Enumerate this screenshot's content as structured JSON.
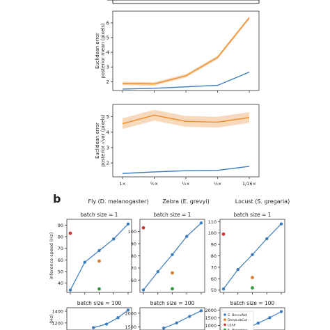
{
  "panel_label_b": "b",
  "column_titles": [
    "Fly (D. melanogaster)",
    "Zebra (E. grevyi)",
    "Locust (S. gregaria)"
  ],
  "colors": {
    "densenet": "#3b7bbf",
    "orange": "#f08a24",
    "deeplabcut": "#e07b28",
    "leap": "#c93a35",
    "green": "#2e9a3b",
    "band": "#f6d2b0"
  },
  "legend_entries": [
    "S. DenseNet",
    "DeepLabCut",
    "LEAP",
    "S. Hourglass"
  ],
  "chart_data": [
    {
      "type": "line",
      "ylabel": "Euclidean error posterior mean (pixels)",
      "yticks": [
        2,
        3,
        4,
        5,
        6
      ],
      "ylim": [
        1.4,
        6.8
      ],
      "x": [
        1,
        2,
        3,
        4,
        5
      ],
      "xtick_labels": [
        "1×",
        "½×",
        "¼×",
        "⅛×",
        "1/16×"
      ],
      "series": [
        {
          "values": [
            1.5,
            1.55,
            1.65,
            1.75,
            2.65
          ],
          "color": "#3b7bbf"
        },
        {
          "values": [
            1.88,
            1.85,
            2.4,
            3.65,
            6.35
          ],
          "band": 0.12,
          "color": "#f08a24"
        }
      ]
    },
    {
      "type": "line",
      "ylabel": "Euclidean error posterior √var (pixels)",
      "yticks": [
        2,
        3,
        4,
        5
      ],
      "ylim": [
        1.1,
        5.8
      ],
      "x": [
        1,
        2,
        3,
        4,
        5
      ],
      "xtick_labels": [
        "1×",
        "½×",
        "¼×",
        "⅛×",
        "1/16×"
      ],
      "series": [
        {
          "values": [
            1.32,
            1.42,
            1.5,
            1.52,
            1.78
          ],
          "color": "#3b7bbf"
        },
        {
          "values": [
            4.55,
            5.1,
            4.7,
            4.65,
            4.95
          ],
          "band": 0.35,
          "color": "#f08a24"
        }
      ]
    },
    {
      "type": "line",
      "title": "batch size = 1",
      "ylabel": "inference speed (Hz)",
      "yticks": [
        40,
        50,
        60,
        70,
        80,
        90
      ],
      "ylim": [
        32,
        95
      ],
      "x": [
        1,
        2,
        3,
        4,
        5,
        6
      ],
      "series": [
        {
          "name": "S. DenseNet",
          "values": [
            34,
            58,
            68,
            78,
            91
          ],
          "x": [
            1,
            2,
            3,
            4,
            5
          ]
        }
      ],
      "points": [
        {
          "x": 1,
          "y": 83,
          "color": "#c93a35"
        },
        {
          "x": 3,
          "y": 59,
          "color": "#e07b28"
        },
        {
          "x": 3,
          "y": 35,
          "color": "#2e9a3b"
        }
      ]
    },
    {
      "type": "line",
      "title": "batch size = 1",
      "yticks": [
        60,
        70,
        80,
        90,
        100
      ],
      "ylim": [
        50,
        110
      ],
      "x": [
        1,
        2,
        3,
        4,
        5
      ],
      "series": [
        {
          "name": "S. DenseNet",
          "values": [
            52,
            67,
            81,
            96,
            107
          ],
          "x": [
            1,
            2,
            3,
            4,
            5
          ]
        }
      ],
      "points": [
        {
          "x": 1,
          "y": 103,
          "color": "#c93a35"
        },
        {
          "x": 3,
          "y": 66,
          "color": "#e07b28"
        },
        {
          "x": 3,
          "y": 53,
          "color": "#2e9a3b"
        }
      ]
    },
    {
      "type": "line",
      "title": "batch size = 1",
      "yticks": [
        50,
        60,
        70,
        80,
        90,
        100,
        110
      ],
      "ylim": [
        48,
        112
      ],
      "x": [
        1,
        2,
        3,
        4,
        5
      ],
      "series": [
        {
          "name": "S. DenseNet",
          "values": [
            51,
            68,
            81,
            95,
            108
          ],
          "x": [
            1,
            2,
            3,
            4,
            5
          ]
        }
      ],
      "points": [
        {
          "x": 1,
          "y": 99,
          "color": "#c93a35"
        },
        {
          "x": 3,
          "y": 61,
          "color": "#e07b28"
        },
        {
          "x": 3,
          "y": 52,
          "color": "#2e9a3b"
        }
      ]
    },
    {
      "type": "line",
      "title": "batch size = 100",
      "ylabel": "(Hz)",
      "yticks": [
        1200,
        1400
      ],
      "ylim": [
        1080,
        1460
      ],
      "series": [
        {
          "name": "S. DenseNet",
          "values": [
            1120,
            1180,
            1290,
            1420
          ],
          "x": [
            2.6,
            3.5,
            4.3,
            5
          ]
        }
      ],
      "points": []
    },
    {
      "type": "line",
      "title": "batch size = 100",
      "yticks": [
        1500,
        2000
      ],
      "ylim": [
        1380,
        2200
      ],
      "series": [
        {
          "name": "S. DenseNet",
          "values": [
            1450,
            1640,
            1880,
            2090
          ],
          "x": [
            2.4,
            3.3,
            4.2,
            5
          ]
        }
      ],
      "points": []
    },
    {
      "type": "line",
      "title": "batch size = 100",
      "yticks": [
        1000,
        1500,
        2000
      ],
      "ylim": [
        700,
        2150
      ],
      "series": [
        {
          "name": "S. DenseNet",
          "values": [
            800,
            1150,
            1500,
            1900
          ],
          "x": [
            2.6,
            3.4,
            4.2,
            5
          ]
        }
      ],
      "points": []
    }
  ]
}
